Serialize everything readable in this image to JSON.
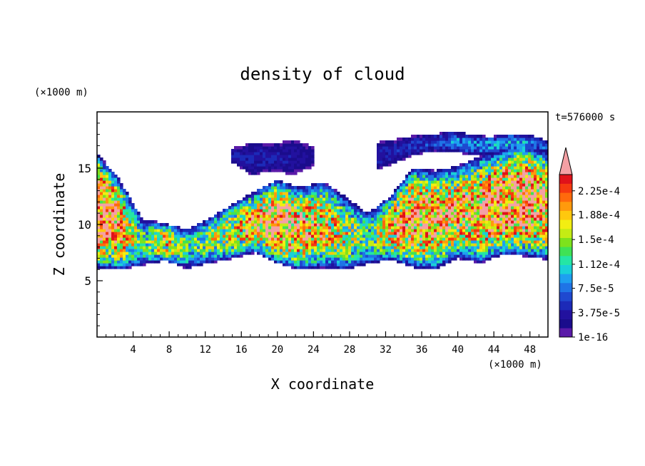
{
  "chart_data": {
    "type": "heatmap",
    "title": "density of cloud",
    "time_label": "t=576000 s",
    "xlabel": "X coordinate",
    "ylabel": "Z coordinate",
    "x_unit": "(×1000 m)",
    "y_unit": "(×1000 m)",
    "xlim": [
      0,
      50
    ],
    "ylim": [
      0,
      20
    ],
    "x_ticks": [
      4,
      8,
      12,
      16,
      20,
      24,
      28,
      32,
      36,
      40,
      44,
      48
    ],
    "y_ticks": [
      5,
      10,
      15
    ],
    "colorbar": {
      "tick_labels": [
        "2.25e-4",
        "1.88e-4",
        "1.5e-4",
        "1.12e-4",
        "7.5e-5",
        "3.75e-5",
        "1e-16"
      ],
      "tick_values": [
        0.000225,
        0.000188,
        0.00015,
        0.000112,
        7.5e-05,
        3.75e-05,
        1e-16
      ],
      "max_level": 0.00025,
      "extend_max": true,
      "colors": [
        "#5a1aa8",
        "#1a0c8c",
        "#22119e",
        "#1c2ab8",
        "#1f49d0",
        "#1f74e6",
        "#1e9ff0",
        "#19d0d8",
        "#24e6a5",
        "#3fe255",
        "#7ee21c",
        "#c4ec14",
        "#f2ee12",
        "#ffc80e",
        "#ff9a0c",
        "#ff6a0c",
        "#f53a10",
        "#e0121a",
        "#f4a0a4"
      ]
    },
    "cloud_layers": [
      {
        "x_start": 0,
        "x_end": 50,
        "z_base": [
          6.2,
          6.0,
          6.4,
          6.8,
          6.1,
          6.6,
          7.0,
          7.5,
          6.6,
          6.0,
          6.2,
          6.0,
          6.5,
          6.9,
          6.2,
          6.0,
          7.0,
          6.6,
          7.3,
          7.2,
          6.9
        ],
        "z_top": [
          16.3,
          14.0,
          10.5,
          10.1,
          9.6,
          10.6,
          11.8,
          13.0,
          14.0,
          13.3,
          13.8,
          12.5,
          11.0,
          12.5,
          15.0,
          14.8,
          15.2,
          16.1,
          16.6,
          17.3,
          16.3
        ],
        "peak": [
          0.00026,
          0.00022,
          0.00012,
          0.00018,
          0.00012,
          0.00015,
          0.00017,
          0.0002,
          0.00024,
          0.00021,
          0.00019,
          0.00016,
          0.00012,
          0.00019,
          0.00023,
          0.00021,
          0.0002,
          0.00022,
          0.00024,
          0.00024,
          0.00021
        ]
      },
      {
        "x_start": 15,
        "x_end": 24,
        "z_base": [
          15.5,
          14.4,
          14.8,
          14.4,
          15.2
        ],
        "z_top": [
          16.8,
          17.3,
          17.1,
          17.6,
          16.9
        ],
        "peak": [
          4e-05,
          4e-05,
          4e-05,
          3e-05,
          3e-05
        ]
      },
      {
        "x_start": 31,
        "x_end": 50,
        "z_base": [
          14.8,
          15.5,
          16.2,
          16.5,
          16.5,
          16.2,
          16.3,
          16.4,
          16.6,
          16.5
        ],
        "z_top": [
          17.3,
          17.6,
          17.9,
          18.0,
          18.3,
          18.0,
          17.8,
          18.1,
          18.0,
          17.4
        ],
        "peak": [
          4e-05,
          4e-05,
          5e-05,
          6e-05,
          7e-05,
          8e-05,
          8e-05,
          9e-05,
          8e-05,
          6e-05
        ]
      }
    ]
  }
}
